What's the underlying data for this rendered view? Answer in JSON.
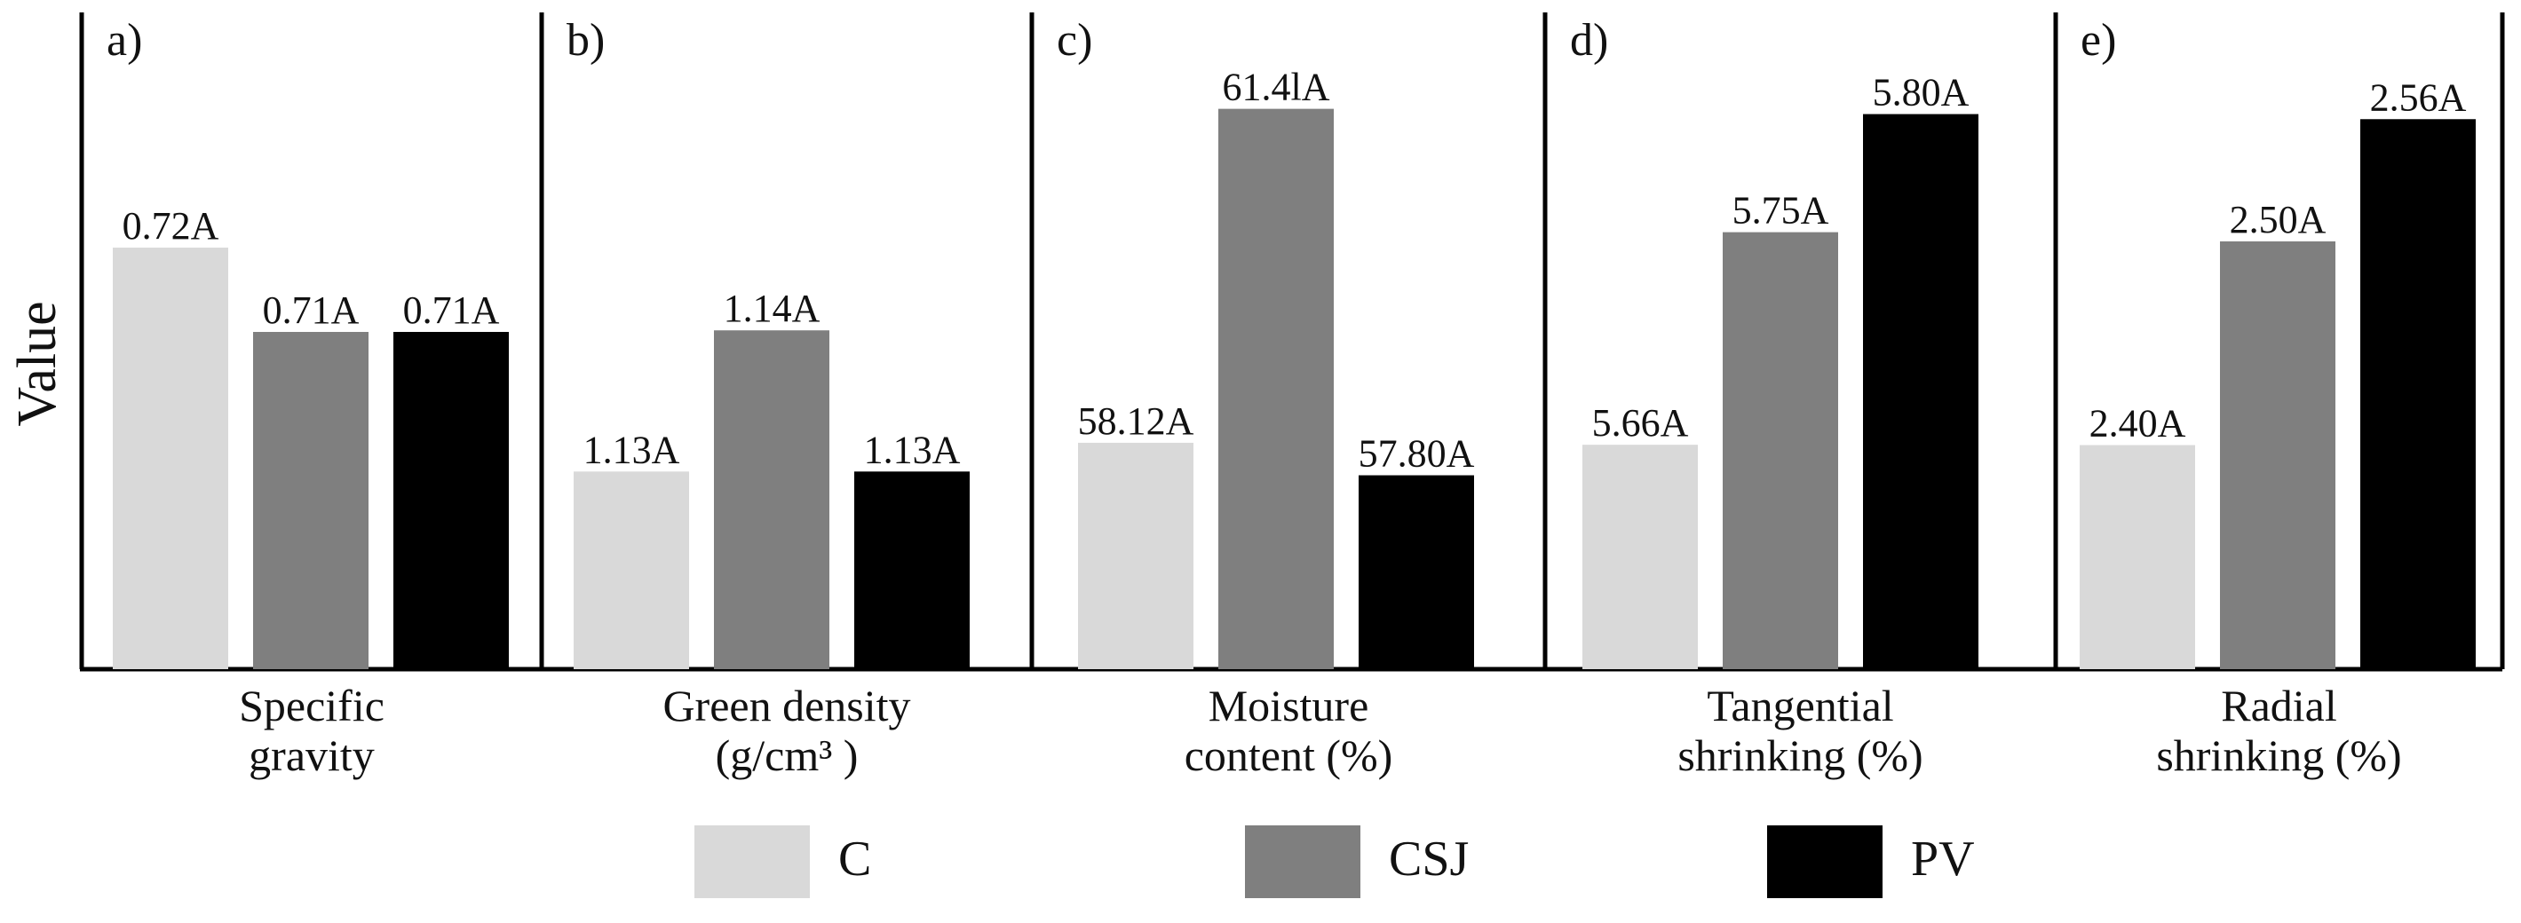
{
  "chart_data": {
    "type": "bar",
    "ylabel": "Value",
    "series_names": [
      "C",
      "CSJ",
      "PV"
    ],
    "colors": {
      "C": "#d9d9d9",
      "CSJ": "#7f7f7f",
      "PV": "#000000"
    },
    "panels": [
      {
        "label": "a)",
        "category": [
          "Specific",
          "gravity"
        ],
        "values": [
          0.72,
          0.71,
          0.71
        ],
        "labels": [
          "0.72A",
          "0.71A",
          "0.71A"
        ],
        "ylim": [
          0.67,
          0.742
        ]
      },
      {
        "label": "b)",
        "category": [
          "Green density",
          "(g/cm³ )"
        ],
        "values": [
          1.13,
          1.14,
          1.13
        ],
        "labels": [
          "1.13A",
          "1.14A",
          "1.13A"
        ],
        "ylim": [
          1.116,
          1.159
        ]
      },
      {
        "label": "c)",
        "category": [
          "Moisture",
          "content (%)"
        ],
        "values": [
          58.12,
          61.41,
          57.8
        ],
        "labels": [
          "58.12A",
          "61.4lA",
          "57.80A"
        ],
        "ylim": [
          55.89,
          61.87
        ]
      },
      {
        "label": "d)",
        "category": [
          "Tangential",
          "shrinking (%)"
        ],
        "values": [
          5.66,
          5.75,
          5.8
        ],
        "labels": [
          "5.66A",
          "5.75A",
          "5.80A"
        ],
        "ylim": [
          5.565,
          5.822
        ]
      },
      {
        "label": "e)",
        "category": [
          "Radial",
          "shrinking (%)"
        ],
        "values": [
          2.4,
          2.5,
          2.56
        ],
        "labels": [
          "2.40A",
          "2.50A",
          "2.56A"
        ],
        "ylim": [
          2.29,
          2.588
        ]
      }
    ]
  },
  "legend": {
    "items": [
      {
        "label": "C",
        "color": "#d9d9d9"
      },
      {
        "label": "CSJ",
        "color": "#7f7f7f"
      },
      {
        "label": "PV",
        "color": "#000000"
      }
    ]
  }
}
